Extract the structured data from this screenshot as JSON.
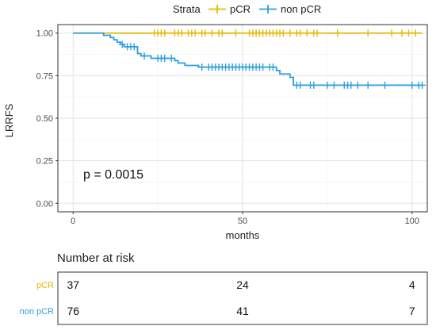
{
  "chart_data": [
    {
      "type": "line",
      "subtype": "kaplan-meier",
      "title": "",
      "xlabel": "months",
      "ylabel": "LRRFS",
      "xlim": [
        0,
        103
      ],
      "ylim": [
        0,
        1
      ],
      "x_ticks": [
        0,
        50,
        100
      ],
      "y_ticks": [
        0.0,
        0.25,
        0.5,
        0.75,
        1.0
      ],
      "x_tick_labels": [
        "0",
        "50",
        "100"
      ],
      "y_tick_labels": [
        "0.00",
        "0.25",
        "0.50",
        "0.75",
        "1.00"
      ],
      "grid": true,
      "legend_position": "top",
      "legend_title": "Strata",
      "annotation": "p = 0.0015",
      "series": [
        {
          "name": "pCR",
          "color": "#e7b800",
          "step_x": [
            0,
            9.5,
            103
          ],
          "step_y": [
            1.0,
            1.0,
            1.0
          ],
          "censor_x": [
            24,
            25,
            26,
            27,
            30,
            31,
            32,
            34,
            35,
            36,
            38,
            39,
            41,
            43,
            44,
            48,
            52,
            53,
            54,
            55,
            56,
            57,
            58,
            59,
            60,
            61,
            62,
            64,
            66,
            67,
            69,
            71,
            72,
            78,
            87,
            94,
            97,
            99,
            101
          ],
          "censor_y": 1.0
        },
        {
          "name": "non pCR",
          "color": "#2e9fdf",
          "step_x": [
            0,
            9,
            11,
            12,
            13,
            14,
            15,
            19,
            20,
            23,
            30,
            31,
            33,
            34,
            37,
            60,
            61,
            64,
            65,
            103
          ],
          "step_y": [
            1.0,
            0.987,
            0.974,
            0.961,
            0.947,
            0.934,
            0.92,
            0.88,
            0.866,
            0.852,
            0.838,
            0.824,
            0.81,
            0.81,
            0.8,
            0.78,
            0.76,
            0.74,
            0.694,
            0.694
          ],
          "censor_x": [
            14.5,
            16,
            17,
            18,
            21,
            25,
            26,
            27,
            29,
            38,
            40,
            41,
            42,
            43,
            44,
            45,
            46,
            47,
            48,
            49,
            50,
            51,
            52,
            53,
            54,
            55,
            56,
            58,
            59,
            66,
            67,
            70,
            71,
            75,
            77,
            80,
            81,
            82,
            84,
            87,
            92,
            100,
            102,
            103
          ],
          "censor_y_auto": true
        }
      ]
    },
    {
      "type": "table",
      "title": "Number at risk",
      "x_ticks": [
        0,
        50,
        100
      ],
      "rows": [
        {
          "name": "pCR",
          "color": "#e7b800",
          "values": [
            "37",
            "24",
            "4"
          ]
        },
        {
          "name": "non pCR",
          "color": "#2e9fdf",
          "values": [
            "76",
            "41",
            "7"
          ]
        }
      ]
    }
  ]
}
